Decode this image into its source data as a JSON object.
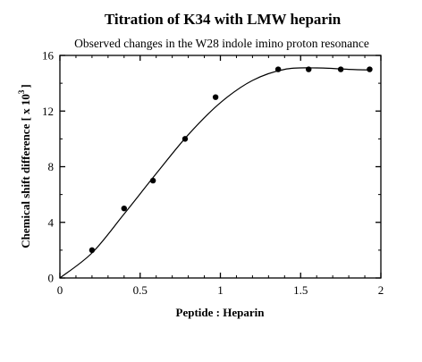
{
  "chart_data": {
    "type": "scatter",
    "title": "Titration of K34 with LMW heparin",
    "subtitle": "Observed changes in the W28 indole imino proton resonance",
    "xlabel": "Peptide : Heparin",
    "ylabel": {
      "before_sup": "Chemical shift difference [ x 10",
      "sup": "3",
      "after_sup": "]"
    },
    "xlim": [
      0,
      2
    ],
    "ylim": [
      0,
      16
    ],
    "xticks": [
      0,
      0.5,
      1,
      1.5,
      2
    ],
    "xtick_labels": [
      "0",
      "0.5",
      "1",
      "1.5",
      "2"
    ],
    "yticks": [
      0,
      4,
      8,
      12,
      16
    ],
    "ytick_labels": [
      "0",
      "4",
      "8",
      "12",
      "16"
    ],
    "grid": false,
    "series": [
      {
        "points": [
          {
            "x": 0.2,
            "y": 2
          },
          {
            "x": 0.4,
            "y": 5
          },
          {
            "x": 0.58,
            "y": 7
          },
          {
            "x": 0.78,
            "y": 10
          },
          {
            "x": 0.97,
            "y": 13
          },
          {
            "x": 1.36,
            "y": 15
          },
          {
            "x": 1.55,
            "y": 15
          },
          {
            "x": 1.75,
            "y": 15
          },
          {
            "x": 1.93,
            "y": 15
          }
        ]
      }
    ],
    "fit_curve": [
      {
        "x": 0,
        "y": 0
      },
      {
        "x": 0.2,
        "y": 1.8
      },
      {
        "x": 0.4,
        "y": 4.6
      },
      {
        "x": 0.6,
        "y": 7.5
      },
      {
        "x": 0.8,
        "y": 10.3
      },
      {
        "x": 1.0,
        "y": 12.6
      },
      {
        "x": 1.2,
        "y": 14.2
      },
      {
        "x": 1.4,
        "y": 15.0
      },
      {
        "x": 1.6,
        "y": 15.1
      },
      {
        "x": 1.8,
        "y": 15.0
      },
      {
        "x": 1.94,
        "y": 14.95
      }
    ],
    "colors": {
      "ink": "#000000",
      "background": "#ffffff"
    }
  }
}
